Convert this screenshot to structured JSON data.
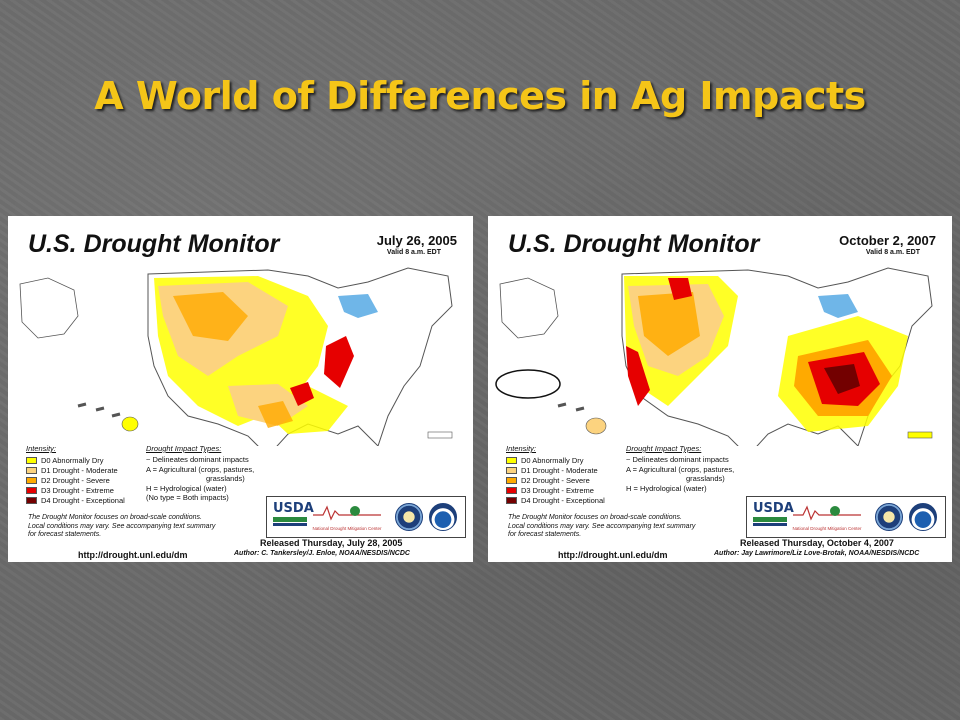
{
  "slide": {
    "title": "A World of Differences in Ag Impacts"
  },
  "colors": {
    "title": "#f5c518",
    "d0": "#ffff00",
    "d1": "#fcd37f",
    "d2": "#ffaa00",
    "d3": "#e60000",
    "d4": "#730000"
  },
  "maps": [
    {
      "title": "U.S. Drought Monitor",
      "date": "July 26, 2005",
      "valid": "Valid 8 a.m. EDT",
      "intensity_header": "Intensity:",
      "intensity": [
        {
          "label": "D0 Abnormally Dry",
          "color": "#ffff00"
        },
        {
          "label": "D1 Drought - Moderate",
          "color": "#fcd37f"
        },
        {
          "label": "D2 Drought - Severe",
          "color": "#ffaa00"
        },
        {
          "label": "D3 Drought - Extreme",
          "color": "#e60000"
        },
        {
          "label": "D4 Drought - Exceptional",
          "color": "#730000"
        }
      ],
      "impact_header": "Drought Impact Types:",
      "impacts": [
        "~ Delineates dominant impacts",
        "A = Agricultural (crops, pastures,",
        "grasslands)",
        "H = Hydrological (water)",
        "(No type = Both impacts)"
      ],
      "notes": [
        "The Drought Monitor focuses on broad-scale conditions.",
        "Local conditions may vary. See accompanying text summary",
        "for forecast statements."
      ],
      "url": "http://drought.unl.edu/dm",
      "logos": {
        "usda": "USDA",
        "ndmc": "National Drought Mitigation Center"
      },
      "released": "Released Thursday, July 28, 2005",
      "author": "Author: C. Tankersley/J. Enloe, NOAA/NESDIS/NCDC"
    },
    {
      "title": "U.S. Drought Monitor",
      "date": "October 2, 2007",
      "valid": "Valid 8 a.m. EDT",
      "intensity_header": "Intensity:",
      "intensity": [
        {
          "label": "D0 Abnormally Dry",
          "color": "#ffff00"
        },
        {
          "label": "D1 Drought - Moderate",
          "color": "#fcd37f"
        },
        {
          "label": "D2 Drought - Severe",
          "color": "#ffaa00"
        },
        {
          "label": "D3 Drought - Extreme",
          "color": "#e60000"
        },
        {
          "label": "D4 Drought - Exceptional",
          "color": "#730000"
        }
      ],
      "impact_header": "Drought Impact Types:",
      "impacts": [
        "~ Delineates dominant impacts",
        "A = Agricultural (crops, pastures,",
        "grasslands)",
        "H = Hydrological (water)"
      ],
      "notes": [
        "The Drought Monitor focuses on broad-scale conditions.",
        "Local conditions may vary. See accompanying text summary",
        "for forecast statements."
      ],
      "url": "http://drought.unl.edu/dm",
      "logos": {
        "usda": "USDA",
        "ndmc": "National Drought Mitigation Center"
      },
      "released": "Released Thursday, October 4, 2007",
      "author": "Author: Jay Lawrimore/Liz Love-Brotak, NOAA/NESDIS/NCDC"
    }
  ]
}
